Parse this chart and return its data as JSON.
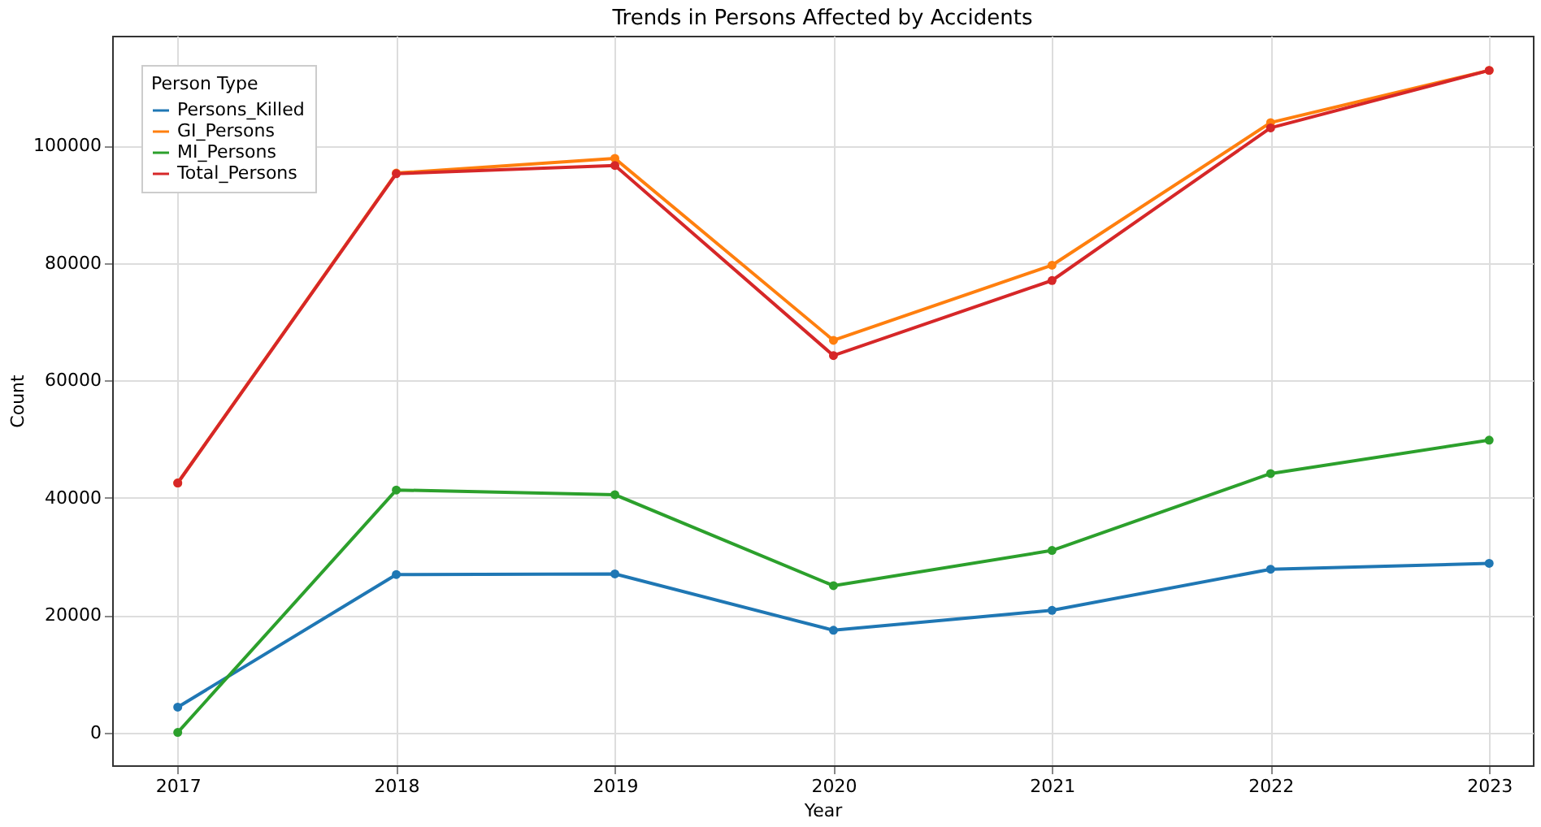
{
  "chart_data": {
    "type": "line",
    "title": "Trends in Persons Affected by Accidents",
    "xlabel": "Year",
    "ylabel": "Count",
    "legend_title": "Person Type",
    "x": [
      2017,
      2018,
      2019,
      2020,
      2021,
      2022,
      2023
    ],
    "series": [
      {
        "name": "Persons_Killed",
        "color": "#1f77b4",
        "values": [
          4300,
          26900,
          27000,
          17400,
          20800,
          27800,
          28800
        ]
      },
      {
        "name": "GI_Persons",
        "color": "#ff7f0e",
        "values": [
          42500,
          95300,
          97800,
          66800,
          79600,
          103900,
          112800
        ]
      },
      {
        "name": "MI_Persons",
        "color": "#2ca02c",
        "values": [
          0,
          41300,
          40500,
          25000,
          31000,
          44100,
          49800
        ]
      },
      {
        "name": "Total_Persons",
        "color": "#d62728",
        "values": [
          42500,
          95200,
          96600,
          64200,
          77000,
          103000,
          112800
        ]
      }
    ],
    "xlim": [
      2016.7,
      2023.2
    ],
    "xticks": [
      2017,
      2018,
      2019,
      2020,
      2021,
      2022,
      2023
    ],
    "ylim": [
      -5600,
      118700
    ],
    "yticks": [
      0,
      20000,
      40000,
      60000,
      80000,
      100000
    ],
    "grid": true,
    "legend": "top left",
    "marker": "circle",
    "line_style": "solid"
  }
}
